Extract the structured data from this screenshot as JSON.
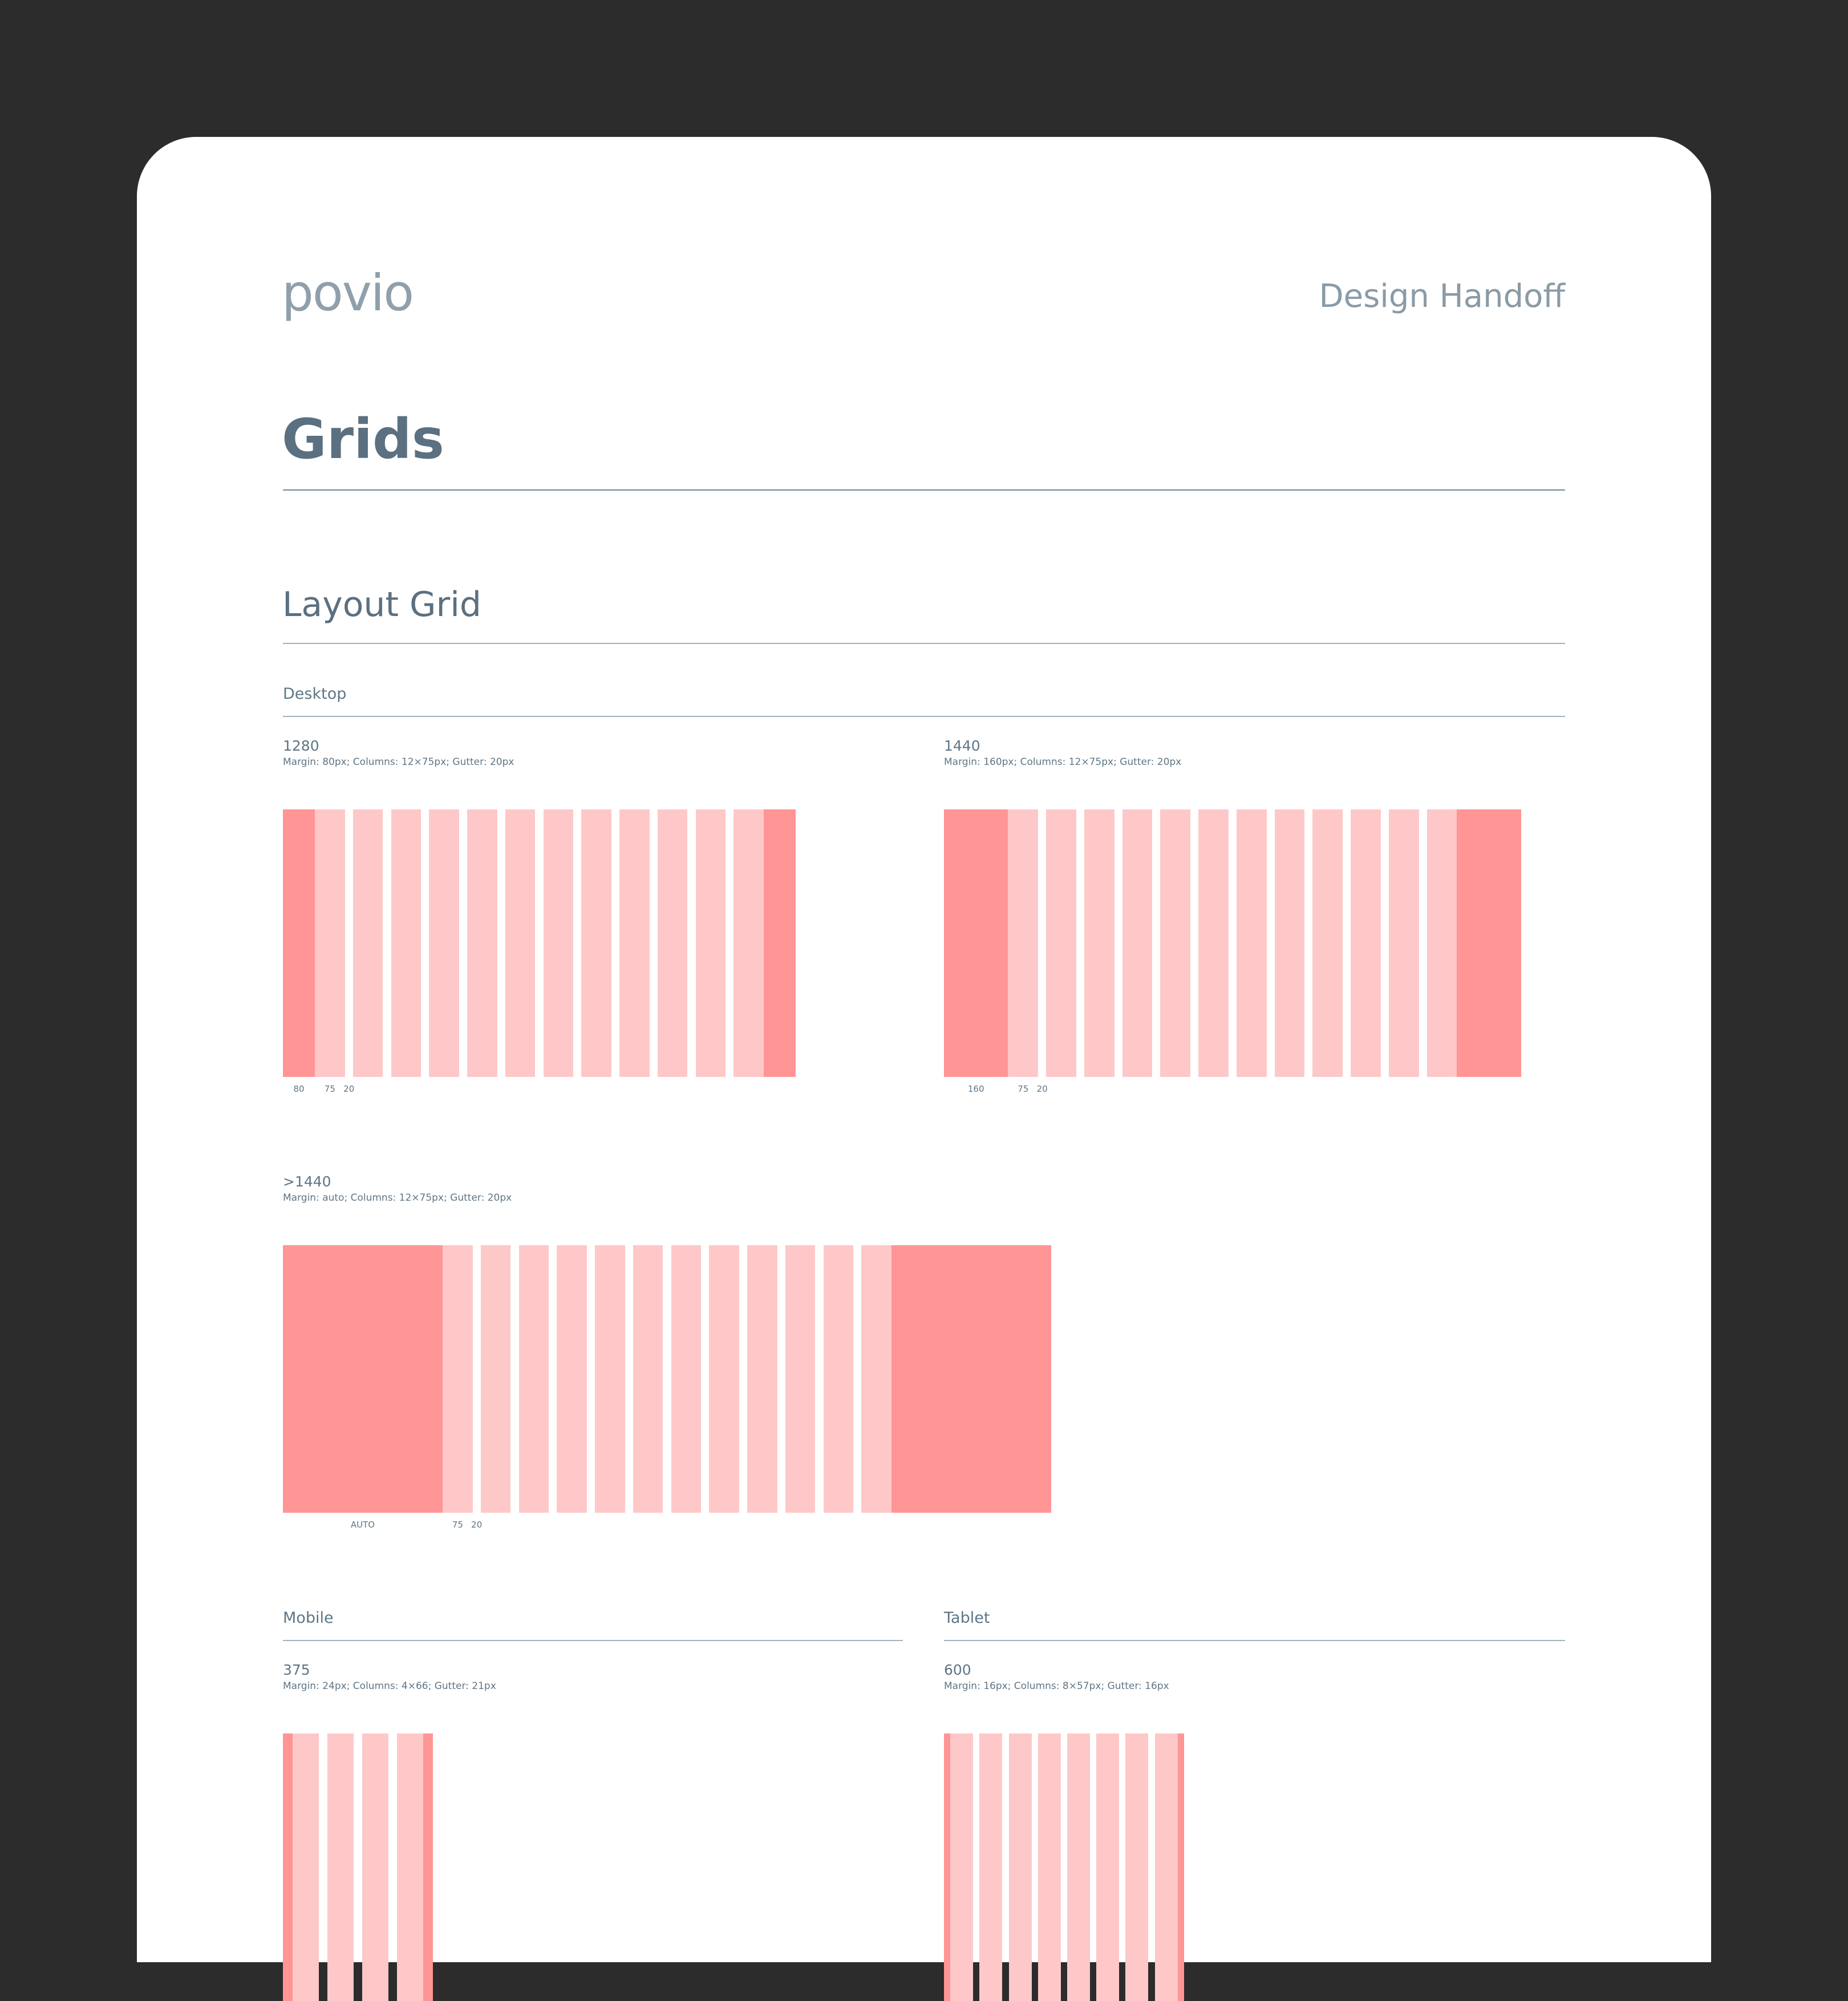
{
  "header": {
    "logo": "povio",
    "title": "Design Handoff"
  },
  "page_title": "Grids",
  "section": "Layout Grid",
  "desktop": {
    "title": "Desktop",
    "grids": [
      {
        "name": "1280",
        "spec": "Margin: 80px; Columns: 12×75px; Gutter: 20px",
        "labels": [
          "80",
          "75",
          "20"
        ]
      },
      {
        "name": "1440",
        "spec": "Margin: 160px; Columns: 12×75px; Gutter: 20px",
        "labels": [
          "160",
          "75",
          "20"
        ]
      },
      {
        "name": ">1440",
        "spec": "Margin: auto; Columns: 12×75px; Gutter: 20px",
        "labels": [
          "AUTO",
          "75",
          "20"
        ]
      }
    ]
  },
  "mobile": {
    "title": "Mobile",
    "grid": {
      "name": "375",
      "spec": "Margin: 24px; Columns: 4×66; Gutter: 21px"
    }
  },
  "tablet": {
    "title": "Tablet",
    "grid": {
      "name": "600",
      "spec": "Margin: 16px; Columns: 8×57px; Gutter: 16px"
    }
  }
}
